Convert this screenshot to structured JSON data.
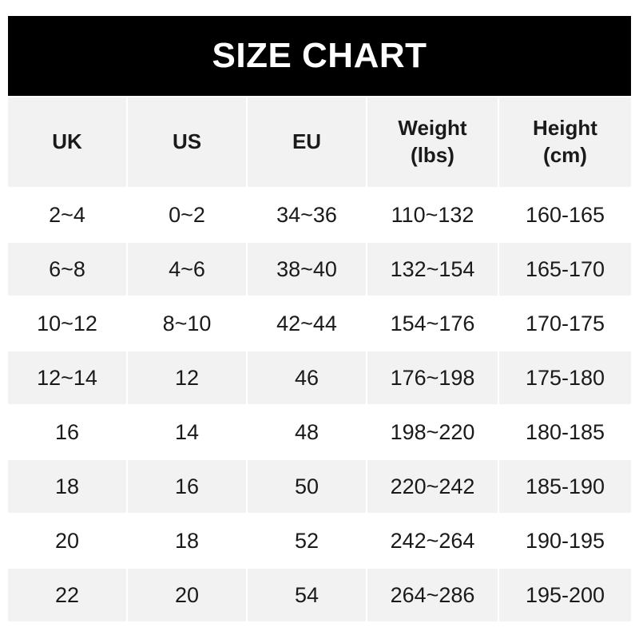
{
  "title": "SIZE CHART",
  "colors": {
    "header_bg": "#000000",
    "header_text": "#ffffff",
    "stripe": "#f2f2f2"
  },
  "columns": [
    "UK",
    "US",
    "EU",
    "Weight\n(lbs)",
    "Height\n(cm)"
  ],
  "rows": [
    [
      "2~4",
      "0~2",
      "34~36",
      "110~132",
      "160-165"
    ],
    [
      "6~8",
      "4~6",
      "38~40",
      "132~154",
      "165-170"
    ],
    [
      "10~12",
      "8~10",
      "42~44",
      "154~176",
      "170-175"
    ],
    [
      "12~14",
      "12",
      "46",
      "176~198",
      "175-180"
    ],
    [
      "16",
      "14",
      "48",
      "198~220",
      "180-185"
    ],
    [
      "18",
      "16",
      "50",
      "220~242",
      "185-190"
    ],
    [
      "20",
      "18",
      "52",
      "242~264",
      "190-195"
    ],
    [
      "22",
      "20",
      "54",
      "264~286",
      "195-200"
    ]
  ]
}
